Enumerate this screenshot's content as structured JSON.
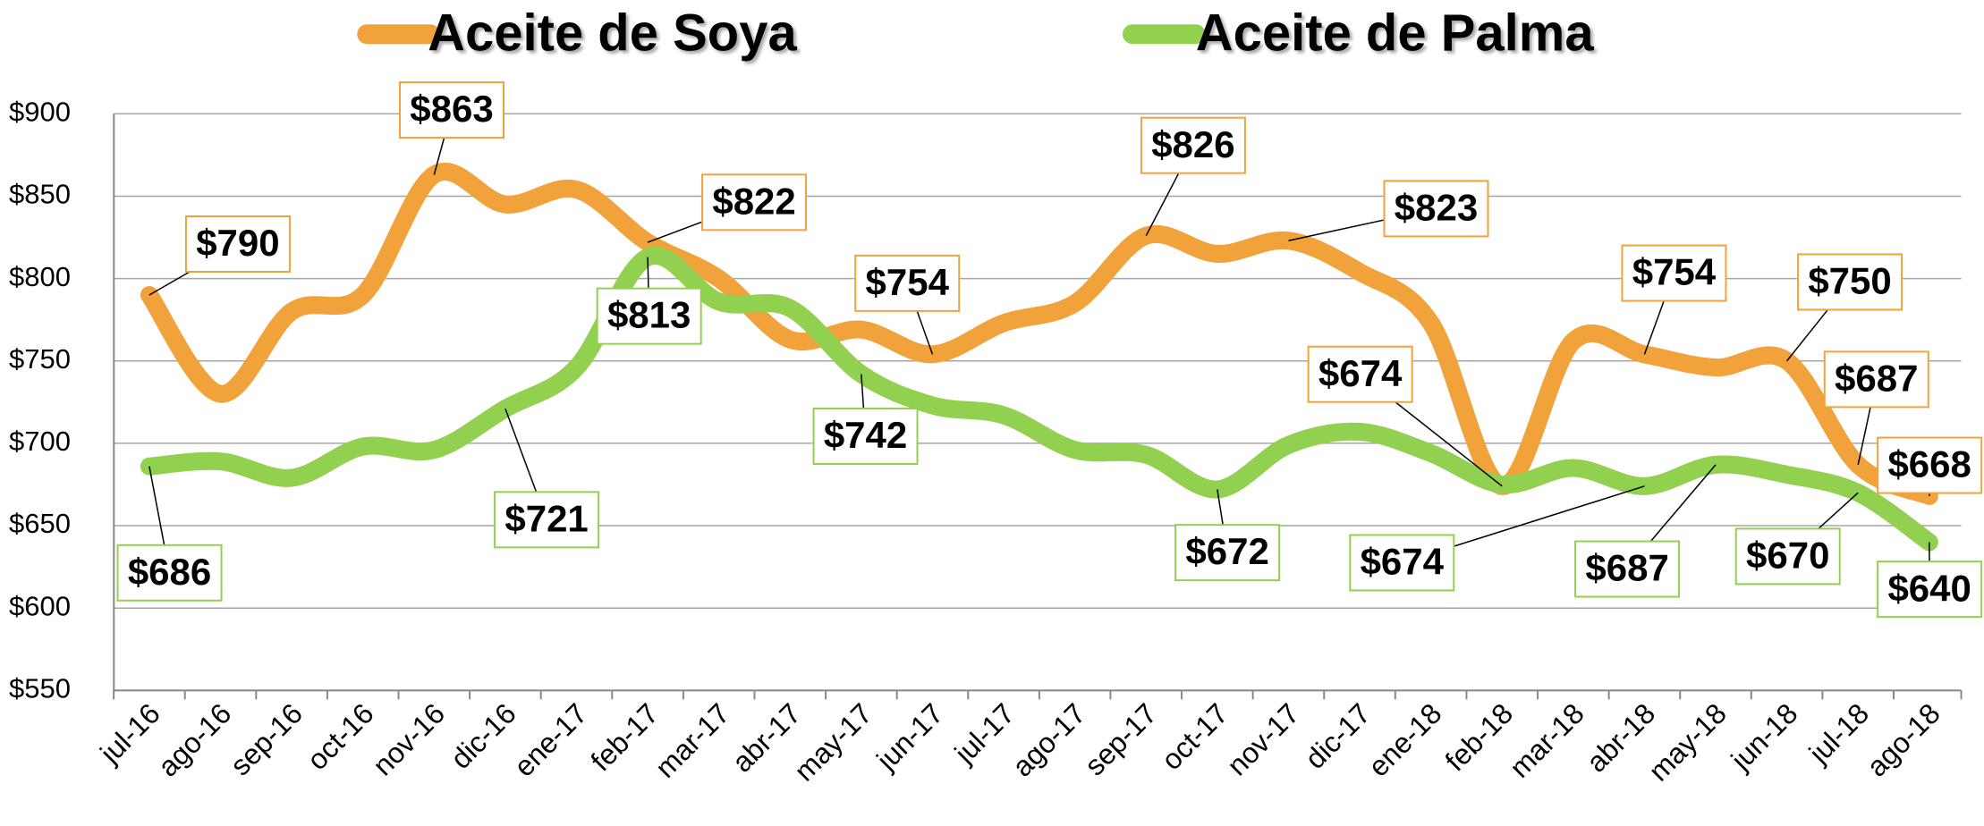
{
  "chart_data": {
    "type": "line",
    "categories": [
      "jul-16",
      "ago-16",
      "sep-16",
      "oct-16",
      "nov-16",
      "dic-16",
      "ene-17",
      "feb-17",
      "mar-17",
      "abr-17",
      "may-17",
      "jun-17",
      "jul-17",
      "ago-17",
      "sep-17",
      "oct-17",
      "nov-17",
      "dic-17",
      "ene-18",
      "feb-18",
      "mar-18",
      "abr-18",
      "may-18",
      "jun-18",
      "jul-18",
      "ago-18"
    ],
    "series": [
      {
        "name": "Aceite de Soya",
        "color": "#f2a23a",
        "values": [
          790,
          730,
          780,
          790,
          863,
          845,
          854,
          822,
          800,
          763,
          769,
          754,
          773,
          785,
          826,
          815,
          823,
          804,
          773,
          674,
          762,
          754,
          746,
          750,
          687,
          668
        ],
        "value_labels": [
          "$790",
          null,
          null,
          null,
          "$863",
          null,
          null,
          "$822",
          null,
          null,
          null,
          "$754",
          null,
          null,
          "$826",
          null,
          "$823",
          null,
          null,
          "$674",
          null,
          "$754",
          null,
          "$750",
          "$687",
          "$668"
        ]
      },
      {
        "name": "Aceite de Palma",
        "color": "#92d050",
        "values": [
          686,
          689,
          679,
          698,
          696,
          721,
          746,
          813,
          786,
          782,
          742,
          723,
          717,
          696,
          693,
          672,
          699,
          707,
          694,
          675,
          685,
          674,
          687,
          681,
          670,
          640
        ],
        "value_labels": [
          "$686",
          null,
          null,
          null,
          null,
          "$721",
          null,
          "$813",
          null,
          null,
          "$742",
          null,
          null,
          null,
          null,
          "$672",
          null,
          null,
          null,
          null,
          null,
          "$674",
          "$687",
          null,
          "$670",
          "$640"
        ]
      }
    ],
    "ylim": [
      550,
      900
    ],
    "yticks": [
      {
        "value": 550,
        "label": "$550"
      },
      {
        "value": 600,
        "label": "$600"
      },
      {
        "value": 650,
        "label": "$650"
      },
      {
        "value": 700,
        "label": "$700"
      },
      {
        "value": 750,
        "label": "$750"
      },
      {
        "value": 800,
        "label": "$800"
      },
      {
        "value": 850,
        "label": "$850"
      },
      {
        "value": 900,
        "label": "$900"
      }
    ],
    "grid": true,
    "legend": "top"
  }
}
